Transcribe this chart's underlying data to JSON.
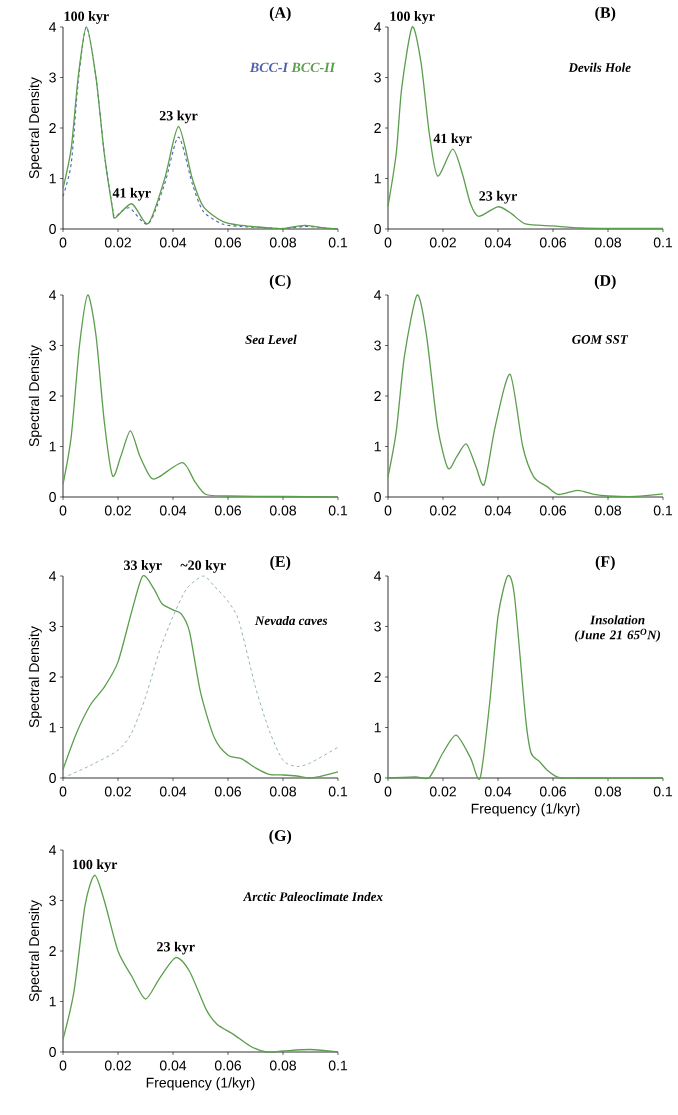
{
  "chart_data": [
    {
      "type": "line",
      "title": "(A)",
      "ylabel": "Spectral Density",
      "xlim": [
        0,
        0.1
      ],
      "ylim": [
        0,
        4
      ],
      "xticks": [
        0,
        0.02,
        0.04,
        0.06,
        0.08,
        0.1
      ],
      "yticks": [
        0,
        1,
        2,
        3,
        4
      ],
      "legend": "top right",
      "annotations": [
        {
          "text": "100 kyr",
          "x": 0.0085,
          "y": 4.0
        },
        {
          "text": "41 kyr",
          "x": 0.025,
          "y": 0.5
        },
        {
          "text": "23 kyr",
          "x": 0.042,
          "y": 2.03
        }
      ],
      "series": [
        {
          "name": "BCC-I",
          "color": "#4e5fae",
          "line_style": "dashed",
          "x": [
            0,
            0.003,
            0.0055,
            0.0085,
            0.012,
            0.015,
            0.018,
            0.019,
            0.024,
            0.031,
            0.037,
            0.042,
            0.047,
            0.051,
            0.058,
            0.065,
            0.075,
            0.08,
            0.088,
            0.095,
            0.1
          ],
          "values": [
            0.65,
            1.3,
            2.9,
            4.0,
            3.0,
            1.5,
            0.42,
            0.25,
            0.42,
            0.1,
            0.9,
            1.82,
            0.9,
            0.35,
            0.1,
            0.05,
            0.02,
            0.01,
            0.05,
            0.02,
            0.0
          ]
        },
        {
          "name": "BCC-II",
          "color": "#5b9e4d",
          "line_style": "solid",
          "x": [
            0,
            0.003,
            0.0055,
            0.0085,
            0.012,
            0.015,
            0.018,
            0.019,
            0.025,
            0.031,
            0.037,
            0.042,
            0.047,
            0.051,
            0.058,
            0.065,
            0.075,
            0.08,
            0.088,
            0.095,
            0.1
          ],
          "values": [
            0.8,
            1.6,
            3.0,
            4.0,
            3.0,
            1.5,
            0.4,
            0.22,
            0.5,
            0.11,
            1.0,
            2.03,
            1.0,
            0.45,
            0.15,
            0.07,
            0.02,
            0.01,
            0.07,
            0.02,
            0.0
          ]
        }
      ]
    },
    {
      "type": "line",
      "title": "(B)",
      "subtitle": "Devils Hole",
      "xlim": [
        0,
        0.1
      ],
      "ylim": [
        0,
        4
      ],
      "xticks": [
        0,
        0.02,
        0.04,
        0.06,
        0.08,
        0.1
      ],
      "yticks": [
        0,
        1,
        2,
        3,
        4
      ],
      "annotations": [
        {
          "text": "100 kyr",
          "x": 0.0088,
          "y": 4.0
        },
        {
          "text": "41 kyr",
          "x": 0.0235,
          "y": 1.58
        },
        {
          "text": "23 kyr",
          "x": 0.04,
          "y": 0.44
        }
      ],
      "series": [
        {
          "color": "#5b9e4d",
          "line_style": "solid",
          "x": [
            0,
            0.003,
            0.005,
            0.0088,
            0.012,
            0.015,
            0.018,
            0.0235,
            0.027,
            0.03,
            0.033,
            0.04,
            0.045,
            0.05,
            0.06,
            0.07,
            0.08,
            0.1
          ],
          "values": [
            0.45,
            1.5,
            2.8,
            4.0,
            3.3,
            1.9,
            1.05,
            1.58,
            1.1,
            0.5,
            0.25,
            0.44,
            0.3,
            0.1,
            0.06,
            0.02,
            0.01,
            0.01
          ]
        }
      ]
    },
    {
      "type": "line",
      "title": "(C)",
      "subtitle": "Sea Level",
      "ylabel": "Spectral Density",
      "xlim": [
        0,
        0.1
      ],
      "ylim": [
        0,
        4
      ],
      "xticks": [
        0,
        0.02,
        0.04,
        0.06,
        0.08,
        0.1
      ],
      "yticks": [
        0,
        1,
        2,
        3,
        4
      ],
      "series": [
        {
          "color": "#5b9e4d",
          "line_style": "solid",
          "x": [
            0,
            0.003,
            0.006,
            0.009,
            0.012,
            0.015,
            0.018,
            0.021,
            0.0245,
            0.028,
            0.032,
            0.035,
            0.0435,
            0.048,
            0.052,
            0.06,
            0.08,
            0.1
          ],
          "values": [
            0.25,
            1.2,
            3.0,
            4.0,
            3.2,
            1.5,
            0.42,
            0.8,
            1.31,
            0.8,
            0.38,
            0.4,
            0.68,
            0.3,
            0.05,
            0.02,
            0.01,
            0.0
          ]
        }
      ]
    },
    {
      "type": "line",
      "title": "(D)",
      "subtitle": "GOM SST",
      "xlim": [
        0,
        0.1
      ],
      "ylim": [
        0,
        4
      ],
      "xticks": [
        0,
        0.02,
        0.04,
        0.06,
        0.08,
        0.1
      ],
      "yticks": [
        0,
        1,
        2,
        3,
        4
      ],
      "series": [
        {
          "color": "#5b9e4d",
          "line_style": "solid",
          "x": [
            0,
            0.003,
            0.006,
            0.0106,
            0.014,
            0.018,
            0.0218,
            0.025,
            0.0285,
            0.032,
            0.035,
            0.039,
            0.0444,
            0.049,
            0.053,
            0.058,
            0.062,
            0.069,
            0.075,
            0.08,
            0.09,
            0.1
          ],
          "values": [
            0.4,
            1.3,
            2.8,
            4.0,
            3.2,
            1.4,
            0.57,
            0.8,
            1.05,
            0.6,
            0.25,
            1.4,
            2.43,
            1.0,
            0.4,
            0.2,
            0.05,
            0.13,
            0.05,
            0.02,
            0.01,
            0.06
          ]
        }
      ]
    },
    {
      "type": "line",
      "title": "(E)",
      "subtitle": "Nevada caves",
      "ylabel": "Spectral Density",
      "xlim": [
        0,
        0.1
      ],
      "ylim": [
        0,
        4
      ],
      "xticks": [
        0,
        0.02,
        0.04,
        0.06,
        0.08,
        0.1
      ],
      "yticks": [
        0,
        1,
        2,
        3,
        4
      ],
      "annotations": [
        {
          "text": "33 kyr",
          "x": 0.029,
          "y": 4.0
        },
        {
          "text": "~20 kyr",
          "x": 0.051,
          "y": 4.0
        }
      ],
      "series": [
        {
          "color": "#5b9e4d",
          "line_style": "solid",
          "x": [
            0,
            0.005,
            0.01,
            0.015,
            0.02,
            0.025,
            0.029,
            0.033,
            0.036,
            0.04,
            0.043,
            0.046,
            0.05,
            0.055,
            0.06,
            0.065,
            0.07,
            0.075,
            0.08,
            0.085,
            0.09,
            0.095,
            0.1
          ],
          "values": [
            0.17,
            0.9,
            1.45,
            1.8,
            2.3,
            3.3,
            4.0,
            3.75,
            3.45,
            3.33,
            3.25,
            2.9,
            1.7,
            0.8,
            0.45,
            0.38,
            0.2,
            0.07,
            0.06,
            0.04,
            0.0,
            0.05,
            0.12
          ]
        },
        {
          "color": "#4f7f8c",
          "line_style": "dashed",
          "x": [
            0,
            0.01,
            0.02,
            0.025,
            0.03,
            0.035,
            0.04,
            0.045,
            0.051,
            0.055,
            0.06,
            0.064,
            0.07,
            0.075,
            0.08,
            0.085,
            0.09,
            0.1
          ],
          "values": [
            0.0,
            0.25,
            0.55,
            0.9,
            1.6,
            2.5,
            3.2,
            3.75,
            4.0,
            3.8,
            3.5,
            3.1,
            1.8,
            0.94,
            0.35,
            0.23,
            0.3,
            0.61
          ]
        }
      ]
    },
    {
      "type": "line",
      "title": "(F)",
      "subtitle": "Insolation (June 21 65$^{O}$N)",
      "xlabel": "Frequency (1/kyr)",
      "xlim": [
        0,
        0.1
      ],
      "ylim": [
        0,
        4
      ],
      "xticks": [
        0,
        0.02,
        0.04,
        0.06,
        0.08,
        0.1
      ],
      "yticks": [
        0,
        1,
        2,
        3,
        4
      ],
      "series": [
        {
          "color": "#5b9e4d",
          "line_style": "solid",
          "x": [
            0,
            0.01,
            0.015,
            0.02,
            0.0248,
            0.03,
            0.0335,
            0.037,
            0.04,
            0.0435,
            0.046,
            0.05,
            0.052,
            0.055,
            0.058,
            0.062,
            0.07,
            0.1
          ],
          "values": [
            0.0,
            0.02,
            0.01,
            0.5,
            0.85,
            0.4,
            0.0,
            1.5,
            3.2,
            4.0,
            3.6,
            1.2,
            0.5,
            0.33,
            0.15,
            0.01,
            0.0,
            0.0
          ]
        }
      ]
    },
    {
      "type": "line",
      "title": "(G)",
      "subtitle": "Arctic Paleoclimate Index",
      "xlabel": "Frequency (1/kyr)",
      "ylabel": "Spectral Density",
      "xlim": [
        0,
        0.1
      ],
      "ylim": [
        0,
        4
      ],
      "xticks": [
        0,
        0.02,
        0.04,
        0.06,
        0.08,
        0.1
      ],
      "yticks": [
        0,
        1,
        2,
        3,
        4
      ],
      "annotations": [
        {
          "text": "100 kyr",
          "x": 0.0115,
          "y": 3.5
        },
        {
          "text": "23 kyr",
          "x": 0.041,
          "y": 1.87
        }
      ],
      "series": [
        {
          "color": "#5b9e4d",
          "line_style": "solid",
          "x": [
            0,
            0.004,
            0.008,
            0.0115,
            0.015,
            0.02,
            0.025,
            0.03,
            0.035,
            0.041,
            0.046,
            0.052,
            0.056,
            0.062,
            0.068,
            0.074,
            0.08,
            0.09,
            0.1
          ],
          "values": [
            0.25,
            1.2,
            2.9,
            3.5,
            3.0,
            2.0,
            1.5,
            1.05,
            1.45,
            1.87,
            1.6,
            0.85,
            0.55,
            0.35,
            0.12,
            0.0,
            0.02,
            0.05,
            0.0
          ]
        }
      ]
    }
  ]
}
